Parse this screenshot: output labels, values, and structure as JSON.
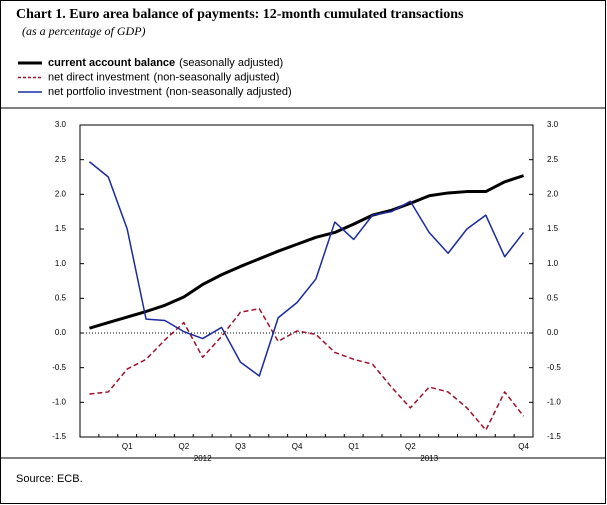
{
  "chart_data": {
    "type": "line",
    "title": "Chart 1. Euro area balance of payments: 12-month cumulated transactions",
    "subtitle": "(as a percentage of GDP)",
    "source": "Source: ECB.",
    "categories": [
      null,
      null,
      "Q1",
      null,
      null,
      "Q2",
      null,
      null,
      "Q3",
      null,
      null,
      "Q4",
      null,
      null,
      "Q1",
      null,
      null,
      "Q2",
      null,
      null,
      null,
      null,
      null,
      "Q4"
    ],
    "groups": [
      "2012",
      "2013"
    ],
    "series": [
      {
        "name": "current account balance",
        "qualifier": "(seasonally adjusted)",
        "color": "#000000",
        "style": "solid",
        "width": 3,
        "values": [
          0.07,
          0.15,
          0.23,
          0.31,
          0.4,
          0.52,
          0.7,
          0.84,
          0.96,
          1.07,
          1.18,
          1.28,
          1.38,
          1.45,
          1.57,
          1.7,
          1.77,
          1.87,
          1.98,
          2.02,
          2.04,
          2.04,
          2.18,
          2.27
        ]
      },
      {
        "name": "net direct investment",
        "qualifier": "(non-seasonally adjusted)",
        "color": "#a0102a",
        "style": "dashed",
        "width": 1.5,
        "values": [
          -0.88,
          -0.85,
          -0.52,
          -0.38,
          -0.1,
          0.15,
          -0.35,
          -0.05,
          0.3,
          0.35,
          -0.12,
          0.03,
          -0.02,
          -0.28,
          -0.38,
          -0.45,
          -0.78,
          -1.08,
          -0.78,
          -0.85,
          -1.08,
          -1.4,
          -0.85,
          -1.2
        ]
      },
      {
        "name": "net portfolio investment",
        "qualifier": "(non-seasonally adjusted)",
        "color": "#1a2aa0",
        "style": "solid",
        "width": 1.5,
        "values": [
          2.47,
          2.25,
          1.5,
          0.2,
          0.18,
          0.02,
          -0.08,
          0.08,
          -0.42,
          -0.62,
          0.22,
          0.44,
          0.78,
          1.6,
          1.35,
          1.7,
          1.75,
          1.9,
          1.45,
          1.15,
          1.5,
          1.7,
          1.1,
          1.45
        ]
      }
    ],
    "ylim": [
      -1.5,
      3.0
    ],
    "yticks": [
      {
        "value": 3.0,
        "label": "3.0"
      },
      2.5,
      {
        "value": 2.0,
        "label": "2.0"
      },
      1.5,
      {
        "value": 1.0,
        "label": "1.0"
      },
      0.5,
      {
        "value": 0.0,
        "label": "0.0"
      },
      -0.5,
      {
        "value": -1.0,
        "label": "-1.0"
      },
      -1.5
    ],
    "zero_line": true
  }
}
